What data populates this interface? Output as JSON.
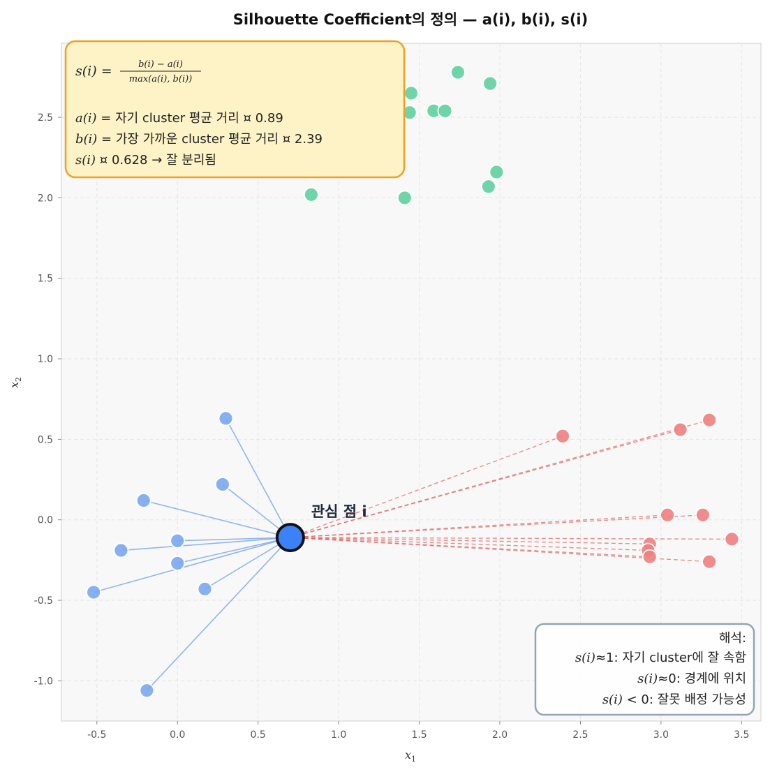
{
  "chart_data": {
    "type": "scatter",
    "title": "Silhouette Coefficient의 정의 — a(i), b(i), s(i)",
    "xlabel": "x",
    "xlabel_sub": "1",
    "ylabel": "x",
    "ylabel_sub": "2",
    "xlim": [
      -0.72,
      3.62
    ],
    "ylim": [
      -1.25,
      2.96
    ],
    "xticks": [
      -0.5,
      0.0,
      0.5,
      1.0,
      1.5,
      2.0,
      2.5,
      3.0,
      3.5
    ],
    "xtick_labels": [
      "-0.5",
      "0.0",
      "0.5",
      "1.0",
      "1.5",
      "2.0",
      "2.5",
      "3.0",
      "3.5"
    ],
    "yticks": [
      -1.0,
      -0.5,
      0.0,
      0.5,
      1.0,
      1.5,
      2.0,
      2.5
    ],
    "ytick_labels": [
      "-1.0",
      "-0.5",
      "0.0",
      "0.5",
      "1.0",
      "1.5",
      "2.0",
      "2.5"
    ],
    "grid": true,
    "point_i": {
      "x": 0.7,
      "y": -0.11,
      "label": "관심 점 i"
    },
    "series": [
      {
        "role": "own-cluster",
        "points": [
          [
            0.3,
            0.63
          ],
          [
            0.28,
            0.22
          ],
          [
            -0.21,
            0.12
          ],
          [
            -0.35,
            -0.19
          ],
          [
            0.0,
            -0.13
          ],
          [
            0.0,
            -0.27
          ],
          [
            -0.52,
            -0.45
          ],
          [
            0.17,
            -0.43
          ],
          [
            -0.19,
            -1.06
          ]
        ]
      },
      {
        "role": "nearest-cluster",
        "points": [
          [
            2.39,
            0.52
          ],
          [
            3.12,
            0.56
          ],
          [
            3.3,
            0.62
          ],
          [
            3.04,
            0.03
          ],
          [
            3.26,
            0.03
          ],
          [
            3.44,
            -0.12
          ],
          [
            2.93,
            -0.15
          ],
          [
            2.92,
            -0.19
          ],
          [
            2.93,
            -0.23
          ],
          [
            3.3,
            -0.26
          ]
        ]
      },
      {
        "role": "far-cluster",
        "points": [
          [
            1.74,
            2.78
          ],
          [
            1.94,
            2.71
          ],
          [
            1.45,
            2.65
          ],
          [
            1.44,
            2.53
          ],
          [
            1.59,
            2.54
          ],
          [
            1.66,
            2.54
          ],
          [
            1.98,
            2.16
          ],
          [
            1.93,
            2.07
          ],
          [
            0.83,
            2.02
          ],
          [
            1.41,
            2.0
          ]
        ]
      }
    ],
    "colors": {
      "own": "#7aa7f0",
      "nearest": "#ef7f7f",
      "far": "#5fd0a0",
      "point_i": "#3b82f6",
      "own_line": "#6f9fe8",
      "nearest_line": "#e06060"
    },
    "formula_box": {
      "formula_lhs": "s(i) = ",
      "formula_num": "b(i) − a(i)",
      "formula_den": "max(a(i), b(i))",
      "line_a_var": "a(i)",
      "line_a_text": " = 자기 cluster 평균 거리 ¤ 0.89",
      "line_b_var": "b(i)",
      "line_b_text": " = 가장 가까운 cluster 평균 거리 ¤ 2.39",
      "line_s_var": "s(i)",
      "line_s_text": " ¤ 0.628  → 잘 분리됨"
    },
    "interp_box": {
      "heading": "해석:",
      "line1_var": "s(i)",
      "line1_text": "≈1: 자기 cluster에 잘 속함",
      "line2_var": "s(i)",
      "line2_text": "≈0: 경계에 위치",
      "line3_var": "s(i)",
      "line3_text": " < 0: 잘못 배정 가능성"
    }
  }
}
